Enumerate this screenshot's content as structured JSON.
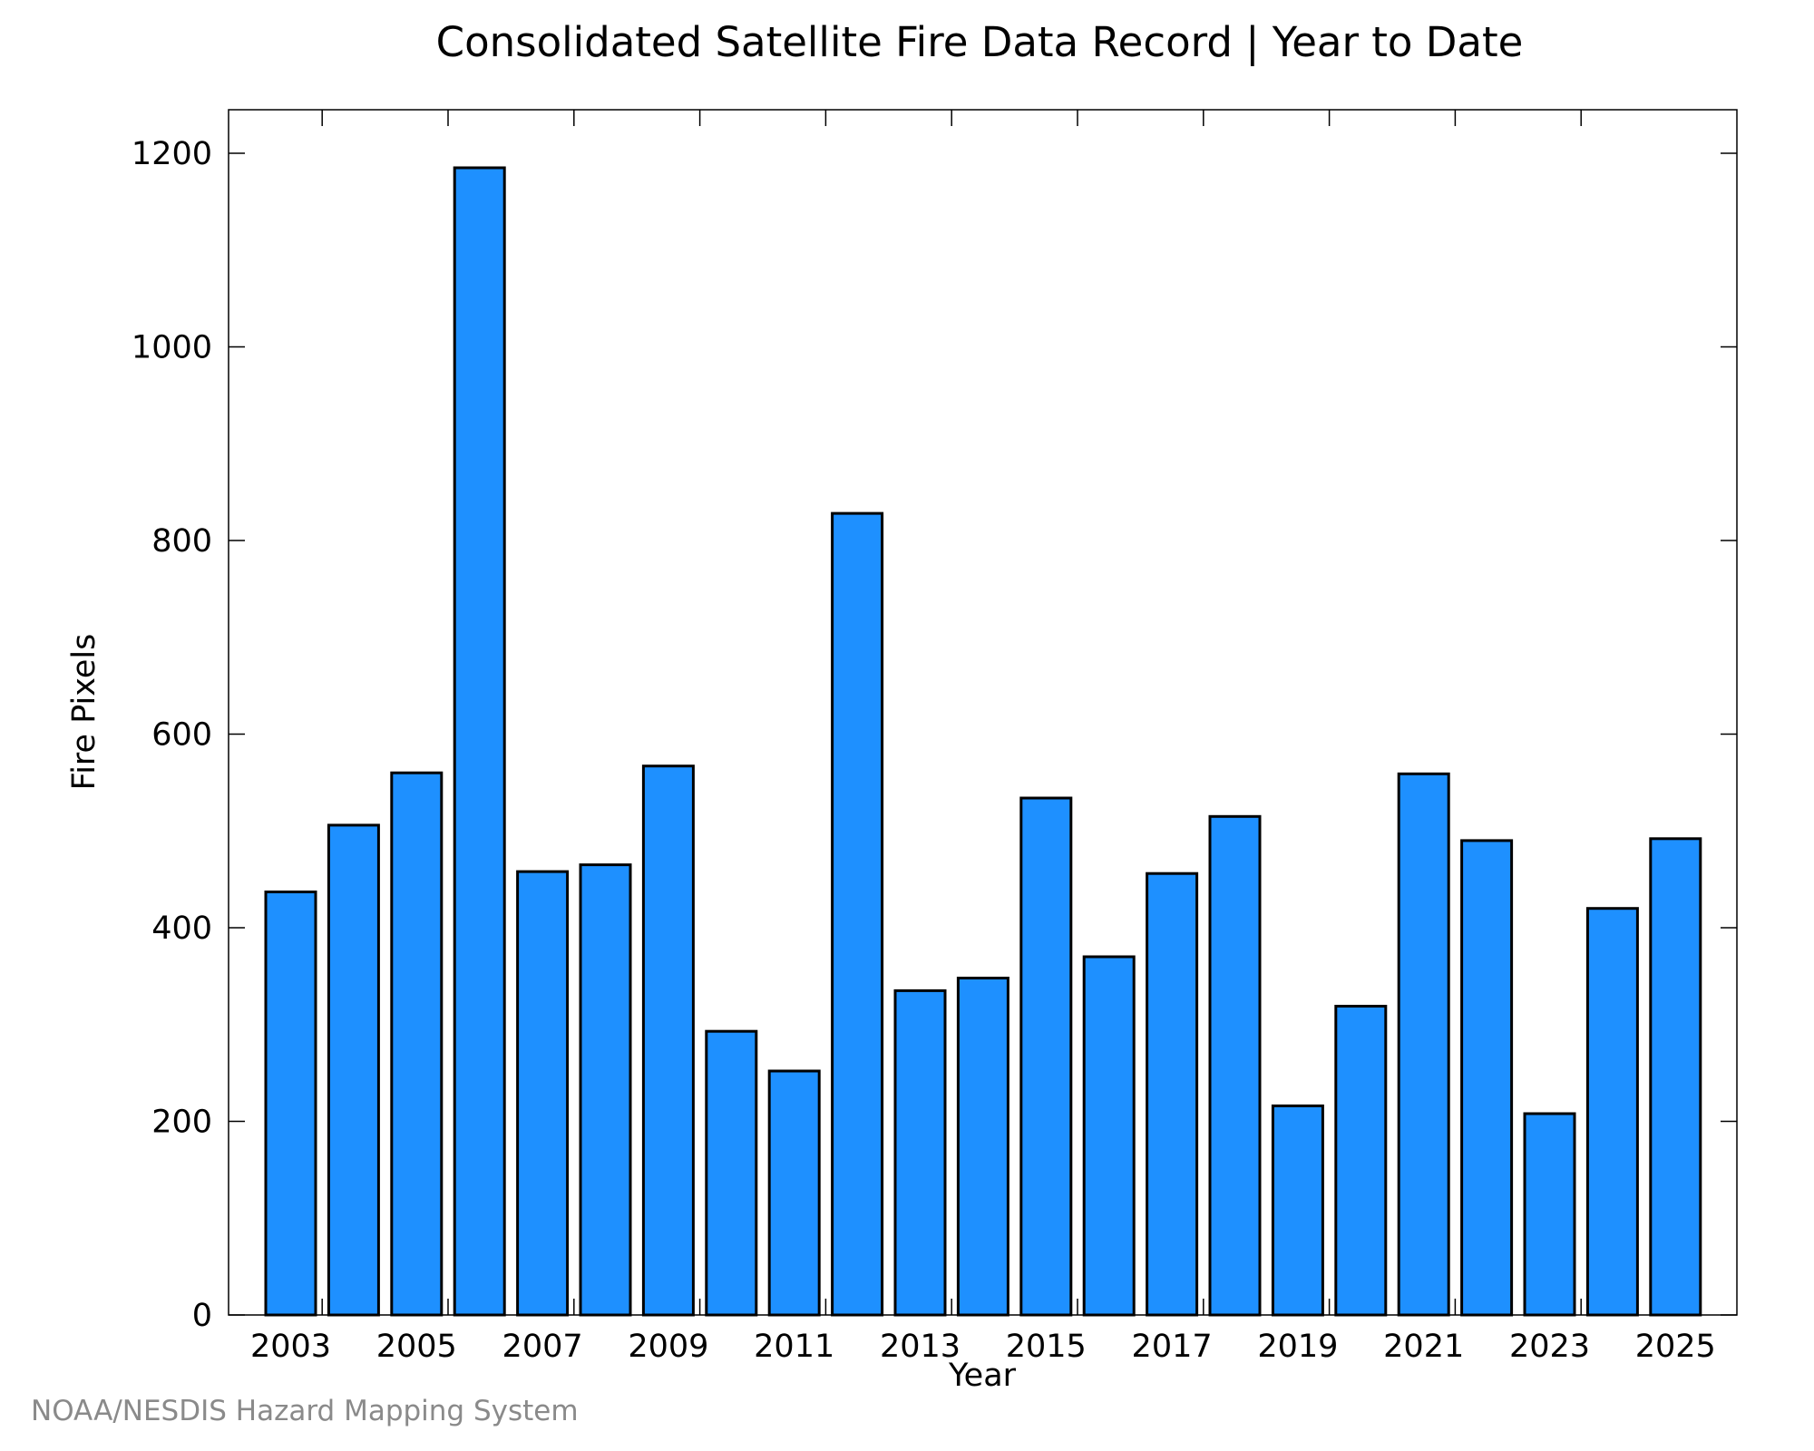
{
  "chart_data": {
    "type": "bar",
    "title": "Consolidated Satellite Fire Data Record | Year to Date",
    "xlabel": "Year",
    "ylabel": "Fire Pixels",
    "categories": [
      "2003",
      "2004",
      "2005",
      "2006",
      "2007",
      "2008",
      "2009",
      "2010",
      "2011",
      "2012",
      "2013",
      "2014",
      "2015",
      "2016",
      "2017",
      "2018",
      "2019",
      "2020",
      "2021",
      "2022",
      "2023",
      "2024",
      "2025"
    ],
    "values": [
      437,
      506,
      560,
      1185,
      458,
      465,
      567,
      293,
      252,
      828,
      335,
      348,
      534,
      370,
      456,
      515,
      216,
      319,
      559,
      490,
      208,
      420,
      492
    ],
    "x_tick_labels": [
      "2003",
      "2005",
      "2007",
      "2009",
      "2011",
      "2013",
      "2015",
      "2017",
      "2019",
      "2021",
      "2023",
      "2025"
    ],
    "y_ticks": [
      0,
      200,
      400,
      600,
      800,
      1000,
      1200
    ],
    "ylim": [
      0,
      1245
    ],
    "bar_color": "#1e90ff",
    "grid": false,
    "legend": "none"
  },
  "footer": {
    "credit": "NOAA/NESDIS Hazard Mapping System"
  }
}
